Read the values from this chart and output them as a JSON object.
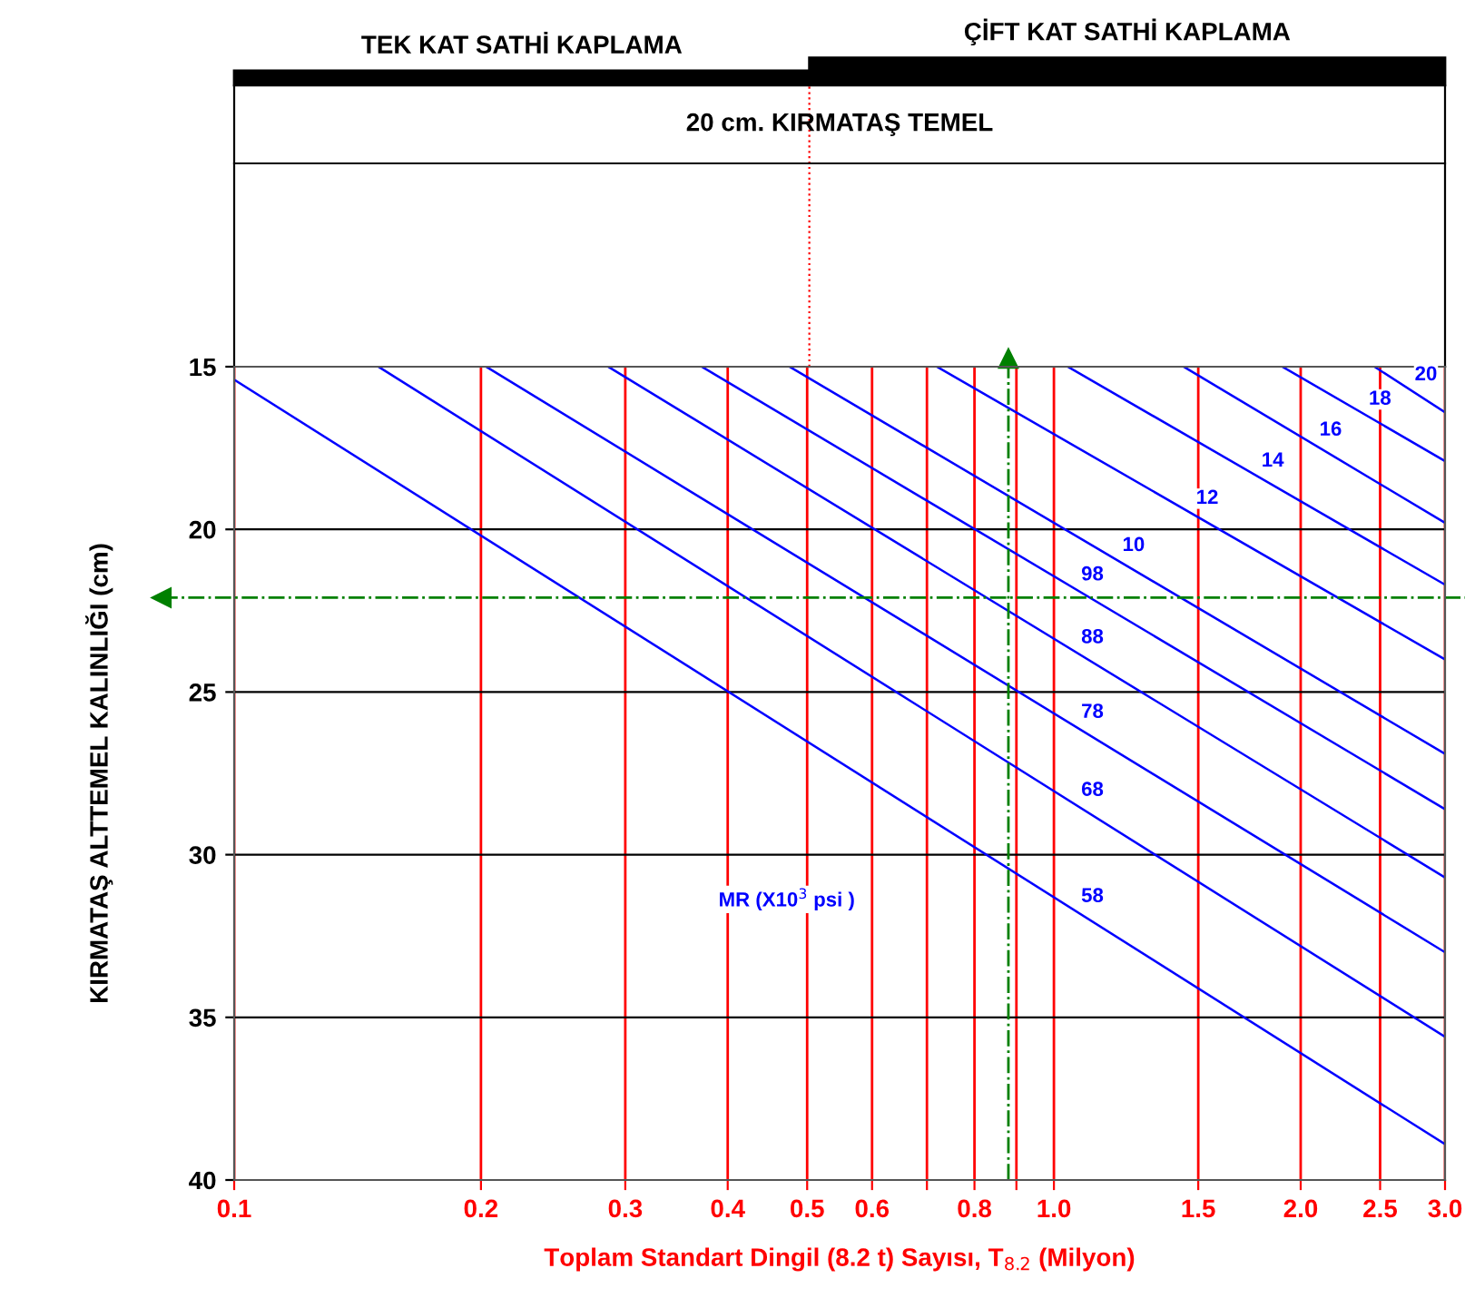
{
  "chart_data": {
    "type": "line",
    "xlabel": "Toplam Standart Dingil (8.2 t) Sayısı, T$_{8.2}$ (Milyon)",
    "ylabel": "KIRMATAŞ ALTTEMEL KALINLIĞI (cm)",
    "log": "x",
    "xlim": [
      0.1,
      3.0
    ],
    "xticks": [
      0.1,
      0.2,
      0.3,
      0.4,
      0.5,
      0.6,
      {
        "value": 0.7,
        "label": null
      },
      0.8,
      {
        "value": 0.9,
        "label": null
      },
      {
        "value": 1.0,
        "label": "1.0"
      },
      1.5,
      {
        "value": 2.0,
        "label": "2.0"
      },
      2.5,
      {
        "value": 3.0,
        "label": "3.0"
      }
    ],
    "ylim": [
      40,
      15
    ],
    "yticks": [
      15,
      20,
      25,
      30,
      35,
      40
    ],
    "grid": true,
    "marker": "none",
    "line_style": "solid",
    "series": [
      {
        "name": "58",
        "color": "#0000ff",
        "x": [
          0.1,
          3.0
        ],
        "values": [
          15.4,
          38.9
        ]
      },
      {
        "name": "68",
        "color": "#0000ff",
        "x": [
          0.15,
          3.0
        ],
        "values": [
          15,
          35.6
        ]
      },
      {
        "name": "78",
        "color": "#0000ff",
        "x": [
          0.203,
          3.0
        ],
        "values": [
          15,
          33.0
        ]
      },
      {
        "name": "88",
        "color": "#0000ff",
        "x": [
          0.286,
          3.0
        ],
        "values": [
          15,
          30.7
        ]
      },
      {
        "name": "98",
        "color": "#0000ff",
        "x": [
          0.372,
          3.0
        ],
        "values": [
          15,
          28.6
        ]
      },
      {
        "name": "10",
        "color": "#0000ff",
        "x": [
          0.476,
          3.0
        ],
        "values": [
          15,
          26.9
        ]
      },
      {
        "name": "12",
        "color": "#0000ff",
        "x": [
          0.72,
          3.0
        ],
        "values": [
          15,
          24.0
        ]
      },
      {
        "name": "14",
        "color": "#0000ff",
        "x": [
          1.04,
          3.0
        ],
        "values": [
          15,
          21.7
        ]
      },
      {
        "name": "16",
        "color": "#0000ff",
        "x": [
          1.44,
          3.0
        ],
        "values": [
          15,
          19.8
        ]
      },
      {
        "name": "18",
        "color": "#0000ff",
        "x": [
          1.9,
          3.0
        ],
        "values": [
          15,
          17.9
        ]
      },
      {
        "name": "20",
        "color": "#0000ff",
        "x": [
          2.46,
          3.0
        ],
        "values": [
          15,
          16.4
        ]
      }
    ],
    "ref_lines": [
      {
        "axis": "x",
        "value": 0.88,
        "color": "#008000",
        "line_style": "dashdot"
      },
      {
        "axis": "y",
        "value": 22.1,
        "color": "#008000",
        "line_style": "dashdot"
      }
    ],
    "annotations": [
      "20 cm. KIRMATAŞ TEMEL",
      "MR (X10$^{3}$ psi )",
      "TEK KAT SATHİ KAPLAMA",
      "ÇİFT KAT SATHİ KAPLAMA"
    ]
  }
}
